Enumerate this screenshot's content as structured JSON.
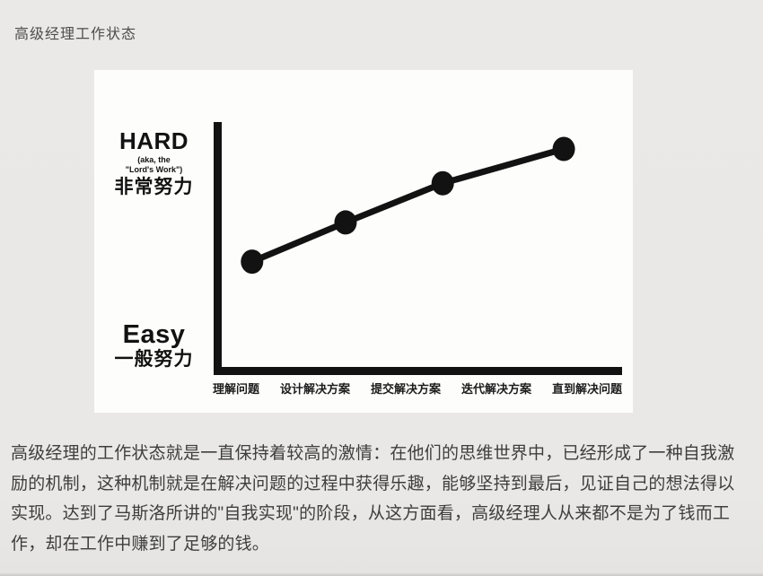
{
  "page": {
    "title": "高级经理工作状态",
    "paragraph_lines": [
      "高级经理的工作状态就是一直保持着较高的激情：在他们的思维世界中，已经形成了一种自我激",
      "励的机制，这种机制就是在解决问题的过程中获得乐趣，能够坚持到最后，见证自己的想法得以",
      "实现。达到了马斯洛所讲的\"自我实现\"的阶段，从这方面看，高级经理人从来都不是为了钱而工",
      "作，却在工作中赚到了足够的钱。"
    ],
    "colors": {
      "background": "#e9e8e6",
      "title_text": "#4d4d4d",
      "body_text": "#3e3e3e",
      "chart_background": "#fdfdfc",
      "chart_ink": "#121212",
      "bottom_edge": "#c8c7c5"
    }
  },
  "chart_data": {
    "type": "line",
    "title": "",
    "xlabel": "",
    "ylabel": "",
    "categories": [
      "理解问题",
      "设计解决方案",
      "提交解决方案",
      "迭代解决方案",
      "直到解决问题"
    ],
    "x_positions": [
      0.086,
      0.317,
      0.557,
      0.856
    ],
    "values": [
      0.43,
      0.59,
      0.75,
      0.89
    ],
    "ylim": [
      0,
      1
    ],
    "y_axis_labels": {
      "top_en": "HARD",
      "top_aka_line1": "(aka, the",
      "top_aka_line2": "\"Lord's Work\")",
      "top_zh": "非常努力",
      "bottom_en": "Easy",
      "bottom_zh": "一般努力"
    },
    "grid": false,
    "legend": "none",
    "line_color": "#121212",
    "marker": "filled-circle"
  }
}
